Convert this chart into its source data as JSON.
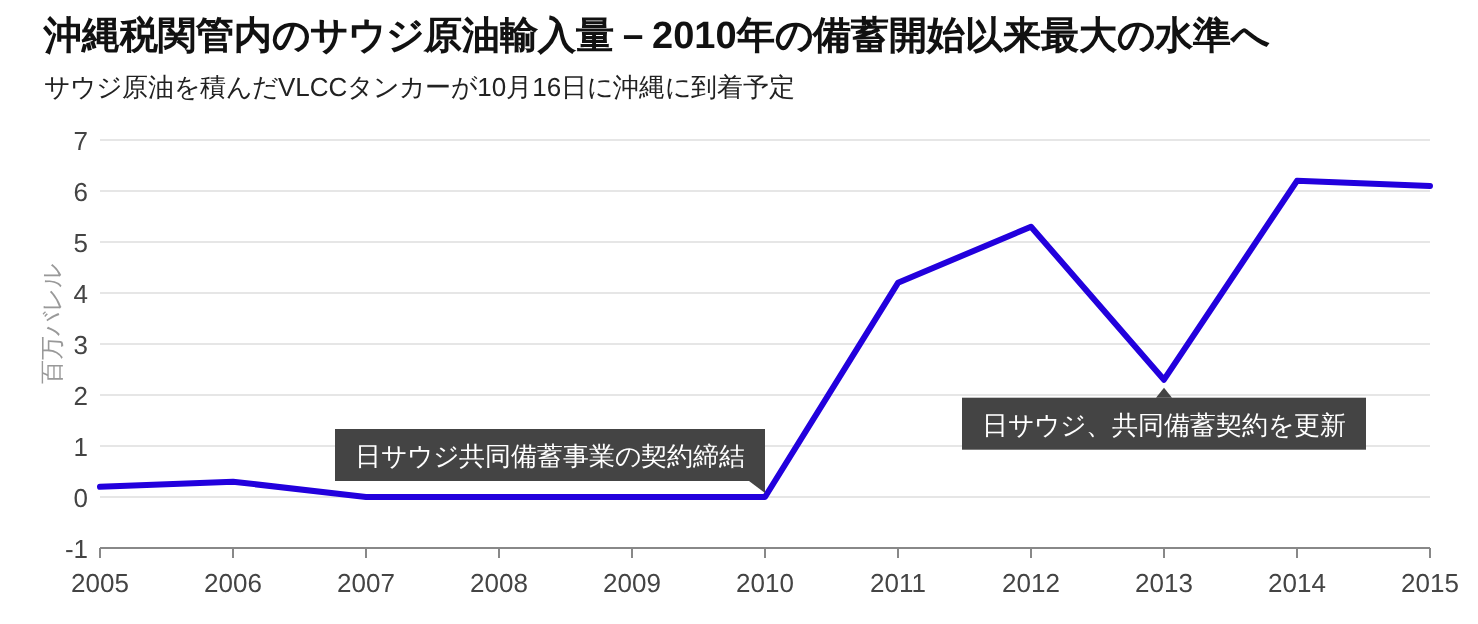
{
  "chart_data": {
    "type": "line",
    "title": "沖縄税関管内のサウジ原油輸入量－2010年の備蓄開始以来最大の水準へ",
    "subtitle": "サウジ原油を積んだVLCCタンカーが10月16日に沖縄に到着予定",
    "ylabel": "百万バレル",
    "x": [
      2005,
      2006,
      2007,
      2008,
      2009,
      2010,
      2011,
      2012,
      2013,
      2014,
      2015
    ],
    "series": [
      {
        "color": "#2200dd",
        "values": [
          0.2,
          0.3,
          0,
          0,
          0,
          0,
          4.2,
          5.3,
          2.3,
          6.2,
          6.1
        ]
      }
    ],
    "xlim": [
      2005,
      2015
    ],
    "xticks": [
      2005,
      2006,
      2007,
      2008,
      2009,
      2010,
      2011,
      2012,
      2013,
      2014,
      2015
    ],
    "ylim": [
      -1,
      7
    ],
    "yticks": [
      -1,
      0,
      1,
      2,
      3,
      4,
      5,
      6,
      7
    ],
    "grid": "y",
    "marker": "none",
    "line_style": "solid",
    "annotations": [
      {
        "text": "日サウジ共同備蓄事業の契約締結",
        "x": 2010,
        "y": 0
      },
      {
        "text": "日サウジ、共同備蓄契約を更新",
        "x": 2013,
        "y": 2.3
      }
    ]
  }
}
